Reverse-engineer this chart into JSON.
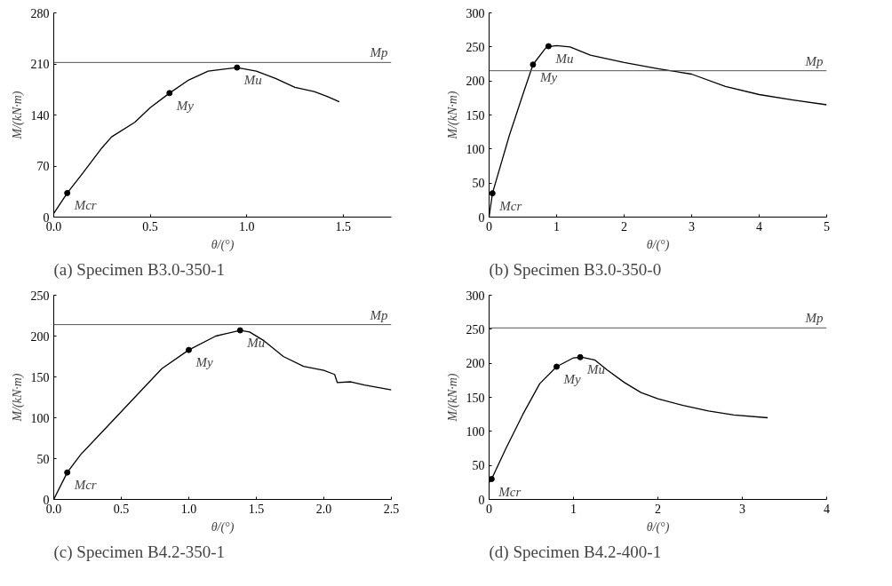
{
  "chart_data": [
    {
      "type": "line",
      "title": "(a) Specimen B3.0-350-1",
      "xlabel": "θ/(°)",
      "ylabel": "M/(kN·m)",
      "xlim": [
        0,
        1.75
      ],
      "ylim": [
        0,
        280
      ],
      "xticks": [
        {
          "value": 0,
          "label": "0.0"
        },
        0.5,
        {
          "value": 1,
          "label": "1.0"
        },
        1.5
      ],
      "yticks": [
        0,
        70,
        140,
        210,
        280
      ],
      "grid": false,
      "series": [
        {
          "color": "#000000",
          "x": [
            0,
            0.07,
            0.15,
            0.25,
            0.3,
            0.42,
            0.5,
            0.6,
            0.7,
            0.8,
            0.95,
            1.05,
            1.15,
            1.25,
            1.35,
            1.42,
            1.48
          ],
          "values": [
            5,
            33,
            60,
            95,
            110,
            130,
            150,
            170,
            188,
            200,
            205,
            200,
            190,
            178,
            172,
            165,
            158
          ]
        },
        {
          "type": "scatter",
          "marker": "circle",
          "color": "#000000",
          "x": [
            0.07,
            0.6,
            0.95
          ],
          "values": [
            33,
            170,
            205
          ]
        }
      ],
      "ref_lines": [
        {
          "axis": "y",
          "value": 212,
          "label": "Mp",
          "color": "#555555"
        }
      ],
      "annotations": [
        {
          "text": "Mcr",
          "x": 0.07,
          "y": 33
        },
        {
          "text": "My",
          "x": 0.6,
          "y": 170
        },
        {
          "text": "Mu",
          "x": 0.95,
          "y": 205
        }
      ]
    },
    {
      "type": "line",
      "title": "(b) Specimen B3.0-350-0",
      "xlabel": "θ/(°)",
      "ylabel": "M/(kN·m)",
      "xlim": [
        0,
        5
      ],
      "ylim": [
        0,
        300
      ],
      "xticks": [
        0,
        1,
        2,
        3,
        4,
        5
      ],
      "yticks": [
        0,
        50,
        100,
        150,
        200,
        250,
        300
      ],
      "grid": false,
      "series": [
        {
          "color": "#000000",
          "x": [
            0,
            0.05,
            0.3,
            0.5,
            0.65,
            0.85,
            1.0,
            1.2,
            1.5,
            2,
            2.5,
            3,
            3.5,
            4,
            4.5,
            5
          ],
          "values": [
            0,
            35,
            120,
            180,
            224,
            250,
            252,
            250,
            238,
            227,
            218,
            210,
            192,
            180,
            172,
            165
          ]
        },
        {
          "type": "scatter",
          "marker": "circle",
          "color": "#000000",
          "x": [
            0.05,
            0.65,
            0.88
          ],
          "values": [
            35,
            224,
            251
          ]
        }
      ],
      "ref_lines": [
        {
          "axis": "y",
          "value": 215,
          "label": "Mp",
          "color": "#555555"
        }
      ],
      "annotations": [
        {
          "text": "Mcr",
          "x": 0.05,
          "y": 35
        },
        {
          "text": "My",
          "x": 0.65,
          "y": 224
        },
        {
          "text": "Mu",
          "x": 0.88,
          "y": 251
        }
      ]
    },
    {
      "type": "line",
      "title": "(c) Specimen B4.2-350-1",
      "xlabel": "θ/(°)",
      "ylabel": "M/(kN·m)",
      "xlim": [
        0,
        2.5
      ],
      "ylim": [
        0,
        250
      ],
      "xticks": [
        {
          "value": 0,
          "label": "0.0"
        },
        0.5,
        {
          "value": 1,
          "label": "1.0"
        },
        1.5,
        {
          "value": 2,
          "label": "2.0"
        },
        2.5
      ],
      "yticks": [
        0,
        50,
        100,
        150,
        200,
        250
      ],
      "grid": false,
      "series": [
        {
          "color": "#000000",
          "x": [
            0,
            0.1,
            0.2,
            0.4,
            0.6,
            0.8,
            1.0,
            1.2,
            1.38,
            1.45,
            1.55,
            1.7,
            1.85,
            2.0,
            2.08,
            2.1,
            2.2,
            2.3,
            2.5
          ],
          "values": [
            0,
            33,
            55,
            90,
            125,
            160,
            183,
            200,
            207,
            205,
            195,
            175,
            163,
            158,
            153,
            143,
            144,
            140,
            134
          ]
        },
        {
          "type": "scatter",
          "marker": "circle",
          "color": "#000000",
          "x": [
            0.1,
            1.0,
            1.38
          ],
          "values": [
            33,
            183,
            207
          ]
        }
      ],
      "ref_lines": [
        {
          "axis": "y",
          "value": 214,
          "label": "Mp",
          "color": "#555555"
        }
      ],
      "annotations": [
        {
          "text": "Mcr",
          "x": 0.1,
          "y": 33
        },
        {
          "text": "My",
          "x": 1.0,
          "y": 183
        },
        {
          "text": "Mu",
          "x": 1.38,
          "y": 207
        }
      ]
    },
    {
      "type": "line",
      "title": "(d) Specimen B4.2-400-1",
      "xlabel": "θ/(°)",
      "ylabel": "M/(kN·m)",
      "xlim": [
        0,
        4
      ],
      "ylim": [
        0,
        300
      ],
      "xticks": [
        0,
        1,
        2,
        3,
        4
      ],
      "yticks": [
        0,
        50,
        100,
        150,
        200,
        250,
        300
      ],
      "grid": false,
      "series": [
        {
          "color": "#000000",
          "x": [
            0,
            0.03,
            0.2,
            0.4,
            0.6,
            0.8,
            1.0,
            1.1,
            1.25,
            1.4,
            1.6,
            1.8,
            2.0,
            2.3,
            2.6,
            2.9,
            3.3
          ],
          "values": [
            25,
            30,
            75,
            125,
            170,
            195,
            208,
            209,
            205,
            190,
            172,
            157,
            148,
            138,
            130,
            124,
            120
          ]
        },
        {
          "type": "scatter",
          "marker": "circle",
          "color": "#000000",
          "x": [
            0.03,
            0.8,
            1.08
          ],
          "values": [
            30,
            195,
            209
          ]
        }
      ],
      "ref_lines": [
        {
          "axis": "y",
          "value": 252,
          "label": "Mp",
          "color": "#555555"
        }
      ],
      "annotations": [
        {
          "text": "Mcr",
          "x": 0.03,
          "y": 30
        },
        {
          "text": "My",
          "x": 0.8,
          "y": 195
        },
        {
          "text": "Mu",
          "x": 1.08,
          "y": 209
        }
      ]
    }
  ]
}
